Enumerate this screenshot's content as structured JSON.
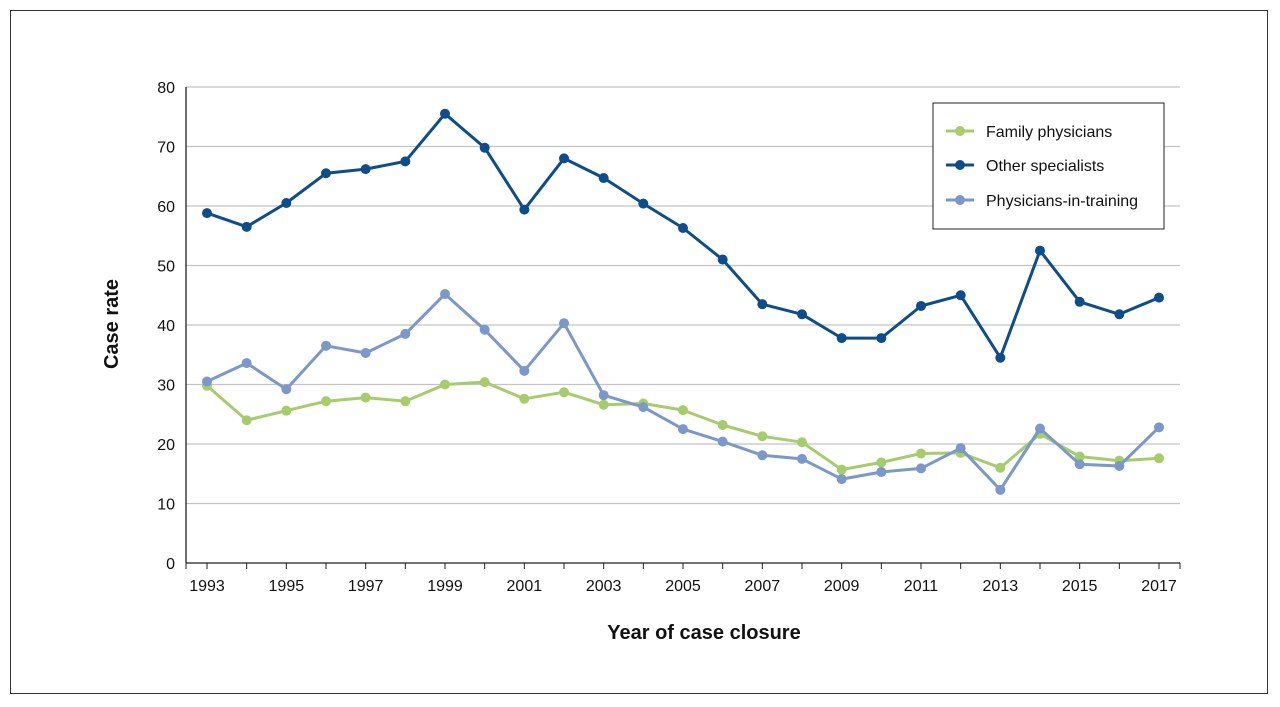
{
  "chart_data": {
    "type": "line",
    "xlabel": "Year of case closure",
    "ylabel": "Case rate",
    "ylim": [
      0,
      80
    ],
    "yticks": [
      0,
      10,
      20,
      30,
      40,
      50,
      60,
      70,
      80
    ],
    "xlim": [
      1993,
      2017
    ],
    "xticks": [
      1993,
      1995,
      1997,
      1999,
      2001,
      2003,
      2005,
      2007,
      2009,
      2011,
      2013,
      2015,
      2017
    ],
    "grid": "horizontal",
    "legend_position": "top-right",
    "x": [
      1993,
      1994,
      1995,
      1996,
      1997,
      1998,
      1999,
      2000,
      2001,
      2002,
      2003,
      2004,
      2005,
      2006,
      2007,
      2008,
      2009,
      2010,
      2011,
      2012,
      2013,
      2014,
      2015,
      2016,
      2017
    ],
    "series": [
      {
        "name": "Family physicians",
        "color": "#a6cc6e",
        "values": [
          29.8,
          24.0,
          25.6,
          27.2,
          27.8,
          27.2,
          30.0,
          30.4,
          27.6,
          28.7,
          26.6,
          26.8,
          25.7,
          23.2,
          21.3,
          20.3,
          15.7,
          16.9,
          18.4,
          18.5,
          16.0,
          21.7,
          17.9,
          17.2,
          17.6
        ]
      },
      {
        "name": "Other specialists",
        "color": "#0f4c8a",
        "values": [
          58.8,
          56.5,
          60.5,
          65.5,
          66.2,
          67.5,
          75.5,
          69.8,
          59.4,
          68.0,
          64.7,
          60.4,
          56.3,
          51.0,
          43.5,
          41.8,
          37.8,
          37.8,
          43.2,
          45.0,
          34.5,
          52.5,
          43.9,
          41.8,
          44.6
        ]
      },
      {
        "name": "Physicians-in-training",
        "color": "#7b98c8",
        "values": [
          30.5,
          33.6,
          29.2,
          36.5,
          35.3,
          38.5,
          45.2,
          39.2,
          32.3,
          40.3,
          28.2,
          26.2,
          22.5,
          20.4,
          18.1,
          17.5,
          14.1,
          15.3,
          15.9,
          19.3,
          12.3,
          22.6,
          16.6,
          16.3,
          22.8
        ]
      }
    ]
  }
}
